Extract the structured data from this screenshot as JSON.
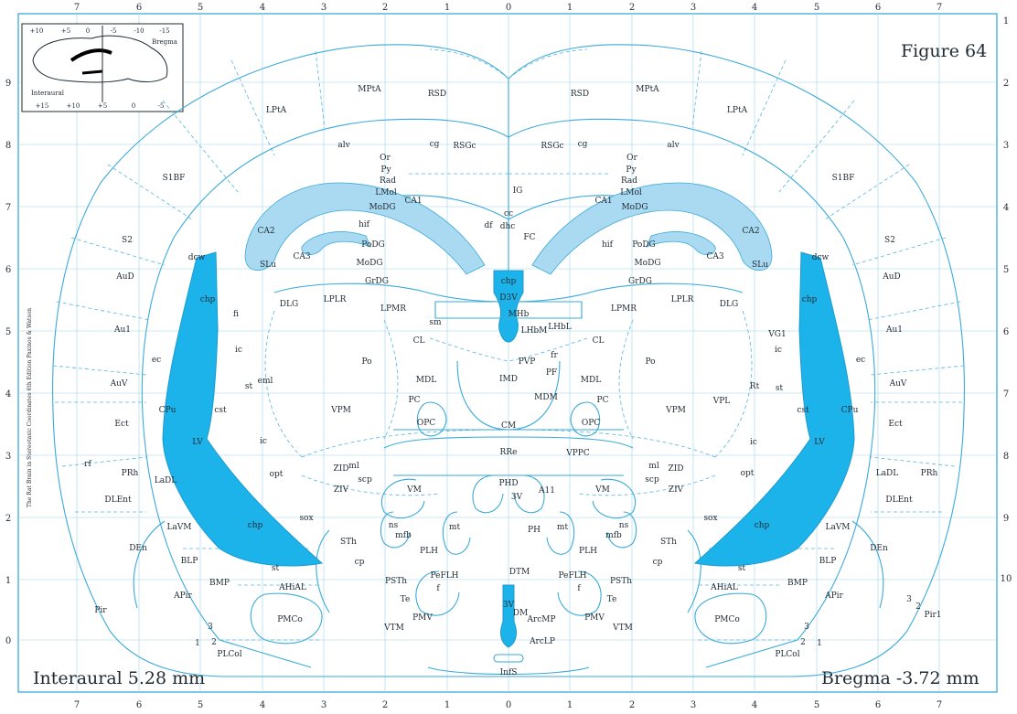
{
  "figure": {
    "title": "Figure 64",
    "interaural": "Interaural 5.28 mm",
    "bregma": "Bregma -3.72 mm",
    "side_text": "The Rat Brain in Stereotaxic Coordinates 6th Edition Paxinos & Watson"
  },
  "axes": {
    "top_ticks": [
      "7",
      "6",
      "5",
      "4",
      "3",
      "2",
      "1",
      "0",
      "1",
      "2",
      "3",
      "4",
      "5",
      "6",
      "7"
    ],
    "bottom_ticks": [
      "7",
      "6",
      "5",
      "4",
      "3",
      "2",
      "1",
      "0",
      "1",
      "2",
      "3",
      "4",
      "5",
      "6",
      "7"
    ],
    "left_ticks": [
      "9",
      "8",
      "7",
      "6",
      "5",
      "4",
      "3",
      "2",
      "1",
      "0"
    ],
    "right_ticks": [
      "1",
      "2",
      "3",
      "4",
      "5",
      "6",
      "7",
      "8",
      "9",
      "10"
    ]
  },
  "inset": {
    "labels": [
      "+10",
      "+5",
      "0",
      "-5",
      "-10",
      "-15",
      "Bregma",
      "Interaural",
      "+15",
      "+10",
      "+5",
      "0",
      "-5"
    ]
  },
  "labels_left": [
    "LPtA",
    "MPtA",
    "RSD",
    "RSGc",
    "S1BF",
    "alv",
    "cg",
    "Or",
    "Py",
    "Rad",
    "LMol",
    "MoDG",
    "CA1",
    "CA2",
    "CA3",
    "SLu",
    "hif",
    "PoDG",
    "MoDG",
    "GrDG",
    "dcw",
    "S2",
    "AuD",
    "chp",
    "fi",
    "DLG",
    "LPLR",
    "LPMR",
    "Au1",
    "ic",
    "ec",
    "sm",
    "CL",
    "Po",
    "eml",
    "st",
    "cst",
    "AuV",
    "CPu",
    "VPM",
    "MDL",
    "PC",
    "OPC",
    "Ect",
    "LV",
    "ic",
    "rf",
    "PRh",
    "LaDL",
    "opt",
    "ml",
    "ZID",
    "scp",
    "ZIV",
    "VM",
    "DLEnt",
    "sox",
    "LaVM",
    "chp",
    "ns",
    "mfb",
    "mt",
    "DEn",
    "STh",
    "PLH",
    "BLP",
    "cp",
    "st",
    "PSTh",
    "PeFLH",
    "BMP",
    "AHiAL",
    "Te",
    "f",
    "APir",
    "Pir",
    "PMCo",
    "VTM",
    "PMV",
    "3",
    "2",
    "PLCol",
    "1"
  ],
  "labels_mid": [
    "cc",
    "IG",
    "df",
    "dhc",
    "FC",
    "chp",
    "D3V",
    "MHb",
    "LHbM",
    "LHbL",
    "fr",
    "PVP",
    "PF",
    "IMD",
    "MDM",
    "CM",
    "RRe",
    "VPPC",
    "PHD",
    "3V",
    "A11",
    "PH",
    "DTM",
    "3V",
    "DM",
    "ArcMP",
    "ArcLP",
    "InfS"
  ],
  "labels_right": [
    "LPtA",
    "MPtA",
    "RSD",
    "RSGc",
    "S1BF",
    "alv",
    "cg",
    "Or",
    "Py",
    "Rad",
    "LMol",
    "MoDG",
    "CA1",
    "CA2",
    "CA3",
    "SLu",
    "hif",
    "PoDG",
    "MoDG",
    "GrDG",
    "dcw",
    "S2",
    "AuD",
    "chp",
    "DLG",
    "LPLR",
    "LPMR",
    "VG1",
    "Au1",
    "ic",
    "ec",
    "CL",
    "Po",
    "Rt",
    "VPL",
    "st",
    "cst",
    "AuV",
    "CPu",
    "VPM",
    "MDL",
    "PC",
    "OPC",
    "Ect",
    "LV",
    "ic",
    "PRh",
    "LaDL",
    "opt",
    "ml",
    "ZID",
    "scp",
    "ZIV",
    "VM",
    "DLEnt",
    "sox",
    "LaVM",
    "chp",
    "ns",
    "mfb",
    "mt",
    "DEn",
    "STh",
    "PLH",
    "BLP",
    "cp",
    "st",
    "PSTh",
    "PeFLH",
    "BMP",
    "AHiAL",
    "Te",
    "f",
    "APir",
    "3",
    "2",
    "Pir1",
    "PMCo",
    "VTM",
    "PMV",
    "3",
    "2",
    "PLCol",
    "1"
  ],
  "colors": {
    "outline": "#3aaad9",
    "layer": "#a9daf1",
    "ventricle": "#1cb3ea",
    "grid": "#9ed3ec"
  }
}
